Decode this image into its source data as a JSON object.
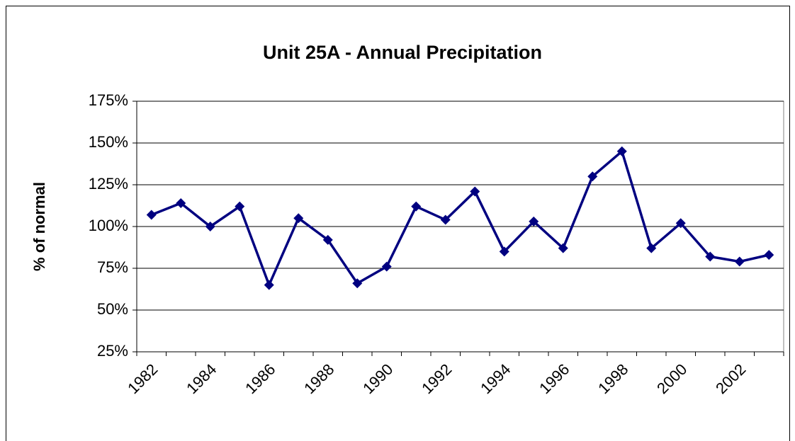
{
  "chart_data": {
    "type": "line",
    "title": "Unit 25A - Annual Precipitation",
    "y_label": "% of normal",
    "categories": [
      "1982",
      null,
      "1984",
      null,
      "1986",
      null,
      "1988",
      null,
      "1990",
      null,
      "1992",
      null,
      "1994",
      null,
      "1996",
      null,
      "1998",
      null,
      "2000",
      null,
      "2002",
      null
    ],
    "values": [
      107,
      114,
      100,
      112,
      65,
      105,
      92,
      66,
      76,
      112,
      104,
      121,
      85,
      103,
      87,
      130,
      145,
      87,
      102,
      82,
      79,
      83
    ],
    "color": "#000080",
    "ylim": [
      25,
      175
    ],
    "yticks": [
      {
        "value": 25,
        "label": "25%"
      },
      {
        "value": 50,
        "label": "50%"
      },
      {
        "value": 75,
        "label": "75%"
      },
      {
        "value": 100,
        "label": "100%"
      },
      {
        "value": 125,
        "label": "125%"
      },
      {
        "value": 150,
        "label": "150%"
      },
      {
        "value": 175,
        "label": "175%"
      }
    ],
    "grid": true
  }
}
